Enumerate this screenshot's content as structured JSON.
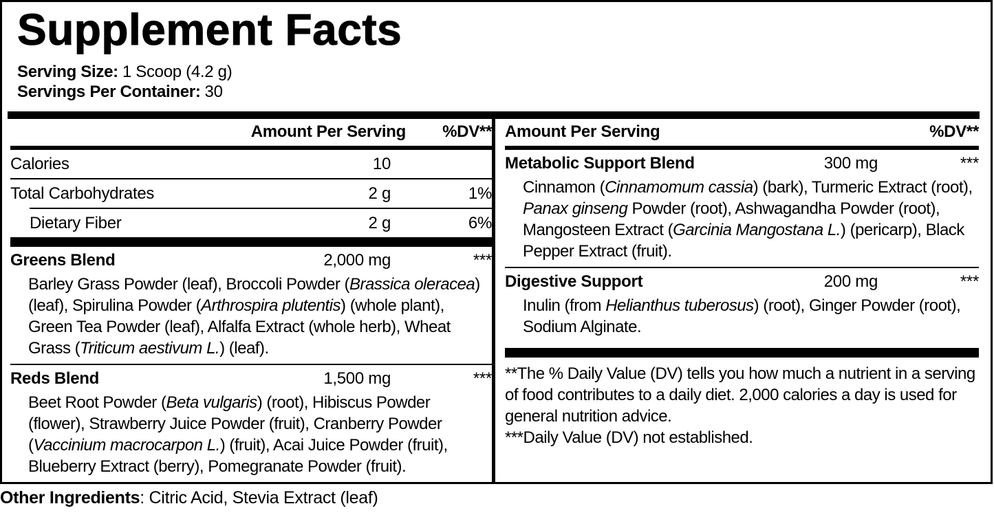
{
  "title": "Supplement Facts",
  "serving": {
    "size_label": "Serving Size:",
    "size_value": "1 Scoop (4.2 g)",
    "container_label": "Servings Per Container:",
    "container_value": "30"
  },
  "columns": {
    "left": {
      "header": {
        "amount": "Amount Per Serving",
        "dv": "%DV**"
      },
      "nutrients": [
        {
          "name": "Calories",
          "amount": "10",
          "dv": ""
        },
        {
          "name": "Total Carbohydrates",
          "amount": "2 g",
          "dv": "1%"
        },
        {
          "name": "Dietary Fiber",
          "amount": "2 g",
          "dv": "6%"
        }
      ],
      "blends": [
        {
          "name": "Greens Blend",
          "amount": "2,000 mg",
          "dv": "***",
          "ingredients": [
            {
              "t": "Barley Grass Powder (leaf), Broccoli Powder ("
            },
            {
              "t": "Brassica oleracea",
              "i": true
            },
            {
              "t": ") (leaf), Spirulina Powder ("
            },
            {
              "t": "Arthrospira plutentis",
              "i": true
            },
            {
              "t": ") (whole plant), Green Tea Powder (leaf), Alfalfa Extract (whole herb), Wheat Grass ("
            },
            {
              "t": "Triticum aestivum L.",
              "i": true
            },
            {
              "t": ") (leaf)."
            }
          ]
        },
        {
          "name": "Reds Blend",
          "amount": "1,500 mg",
          "dv": "***",
          "ingredients": [
            {
              "t": "Beet Root Powder ("
            },
            {
              "t": "Beta vulgaris",
              "i": true
            },
            {
              "t": ") (root), Hibiscus Powder (flower), Strawberry Juice Powder (fruit), Cranberry Powder ("
            },
            {
              "t": "Vaccinium macrocarpon L.",
              "i": true
            },
            {
              "t": ") (fruit), Acai Juice Powder (fruit), Blueberry Extract (berry), Pomegranate Powder (fruit)."
            }
          ]
        }
      ]
    },
    "right": {
      "header": {
        "amount": "Amount Per Serving",
        "dv": "%DV**"
      },
      "blends": [
        {
          "name": "Metabolic Support Blend",
          "amount": "300 mg",
          "dv": "***",
          "ingredients": [
            {
              "t": "Cinnamon ("
            },
            {
              "t": "Cinnamomum cassia",
              "i": true
            },
            {
              "t": ") (bark), Turmeric Extract (root), "
            },
            {
              "t": "Panax ginseng",
              "i": true
            },
            {
              "t": " Powder (root), Ashwagandha Powder (root), Mangosteen Extract ("
            },
            {
              "t": "Garcinia Mangostana L.",
              "i": true
            },
            {
              "t": ") (pericarp), Black Pepper Extract (fruit)."
            }
          ]
        },
        {
          "name": "Digestive Support",
          "amount": "200 mg",
          "dv": "***",
          "ingredients": [
            {
              "t": "Inulin (from "
            },
            {
              "t": "Helianthus tuberosus",
              "i": true
            },
            {
              "t": ") (root), Ginger Powder (root), Sodium Alginate."
            }
          ]
        }
      ],
      "footnotes": [
        "**The % Daily Value (DV) tells you how much a nutrient in a serving of food contributes to a daily diet. 2,000 calories a day is used for general nutrition advice.",
        "***Daily Value (DV) not established."
      ]
    }
  },
  "other_ingredients": {
    "label": "Other Ingredients",
    "value": ": Citric Acid, Stevia Extract (leaf)"
  },
  "colors": {
    "ink": "#000000",
    "background": "#ffffff"
  }
}
